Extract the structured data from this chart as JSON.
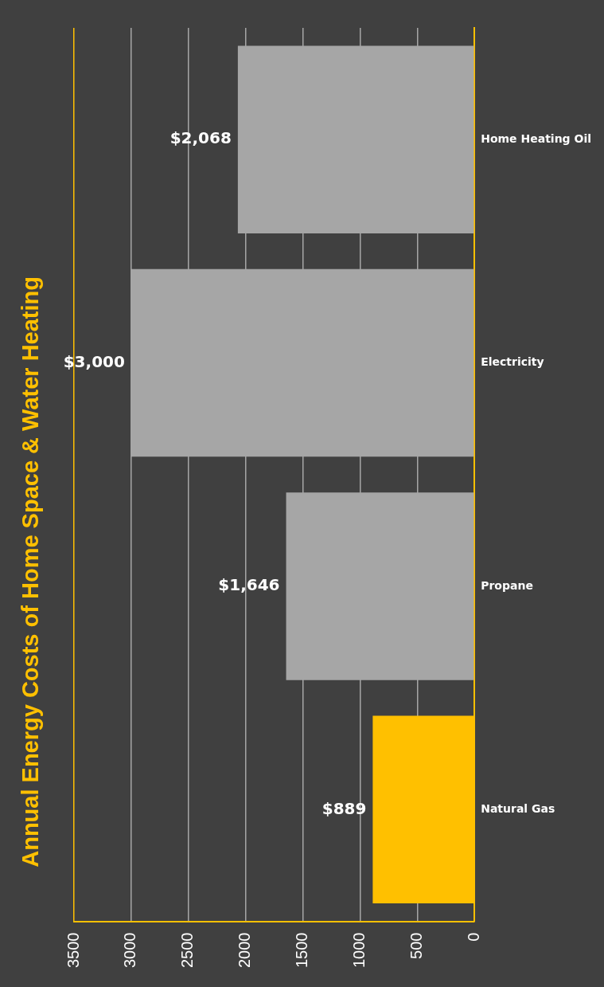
{
  "chart_data": {
    "type": "bar",
    "orientation": "horizontal",
    "title": "Annual Energy Costs of Home Space & Water Heating",
    "categories": [
      "Home Heating Oil",
      "Electricity",
      "Propane",
      "Natural Gas"
    ],
    "values": [
      2068,
      3000,
      1646,
      889
    ],
    "colors": [
      "#a6a6a6",
      "#a6a6a6",
      "#a6a6a6",
      "#ffc000"
    ],
    "value_labels": [
      "$2,068",
      "$3,000",
      "$1,646",
      "$889"
    ],
    "xlim": [
      3500,
      0
    ],
    "xticks": [
      0,
      500,
      1000,
      1500,
      2000,
      2500,
      3000,
      3500
    ],
    "grid": "x",
    "legend": false
  }
}
